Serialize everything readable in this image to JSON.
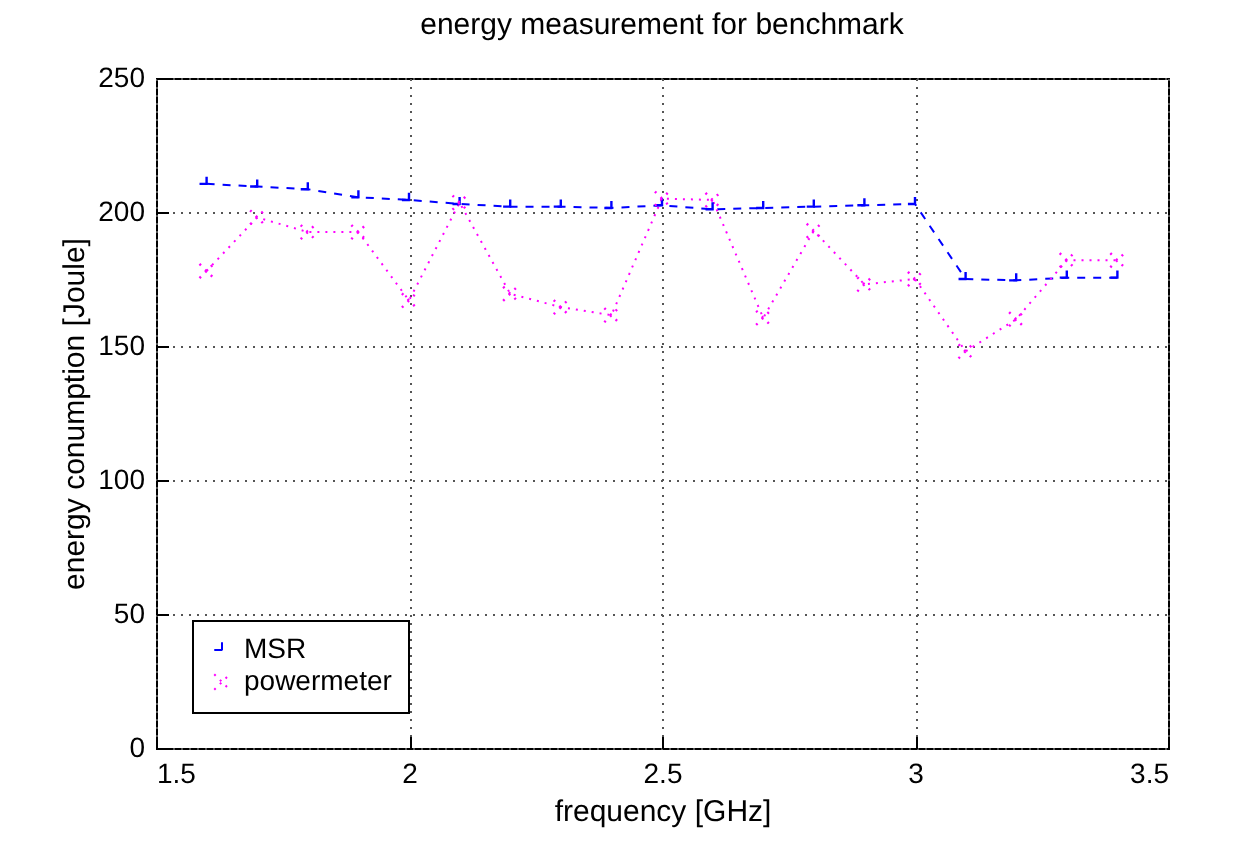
{
  "chart_data": {
    "type": "line",
    "title": "energy measurement for benchmark",
    "xlabel": "frequency [GHz]",
    "ylabel": "energy conumption [Joule]",
    "x": [
      1.6,
      1.7,
      1.8,
      1.9,
      2.0,
      2.1,
      2.2,
      2.3,
      2.4,
      2.5,
      2.6,
      2.7,
      2.8,
      2.9,
      3.0,
      3.1,
      3.2,
      3.3,
      3.4
    ],
    "series": [
      {
        "name": "MSR",
        "color": "#0000ff",
        "line_style": "dashed",
        "values": [
          210.5,
          209.5,
          208.5,
          205.5,
          204.5,
          203,
          202,
          202,
          201.5,
          202.5,
          201,
          201.5,
          202,
          202.5,
          203,
          175,
          174.5,
          175.5,
          175.5
        ]
      },
      {
        "name": "powermeter",
        "color": "#ff00ff",
        "line_style": "dotted",
        "values": [
          178,
          198,
          192.5,
          192.5,
          167,
          203.5,
          169.5,
          164.5,
          161.5,
          205,
          204.5,
          160.5,
          193,
          173,
          175,
          148,
          160,
          182,
          182
        ]
      }
    ],
    "marker": "cross",
    "xlim": [
      1.5,
      3.5
    ],
    "xticks": [
      1.5,
      2,
      2.5,
      3,
      3.5
    ],
    "ylim": [
      0,
      250
    ],
    "yticks": [
      0,
      50,
      100,
      150,
      200,
      250
    ],
    "grid": true,
    "legend": "bottom left"
  }
}
